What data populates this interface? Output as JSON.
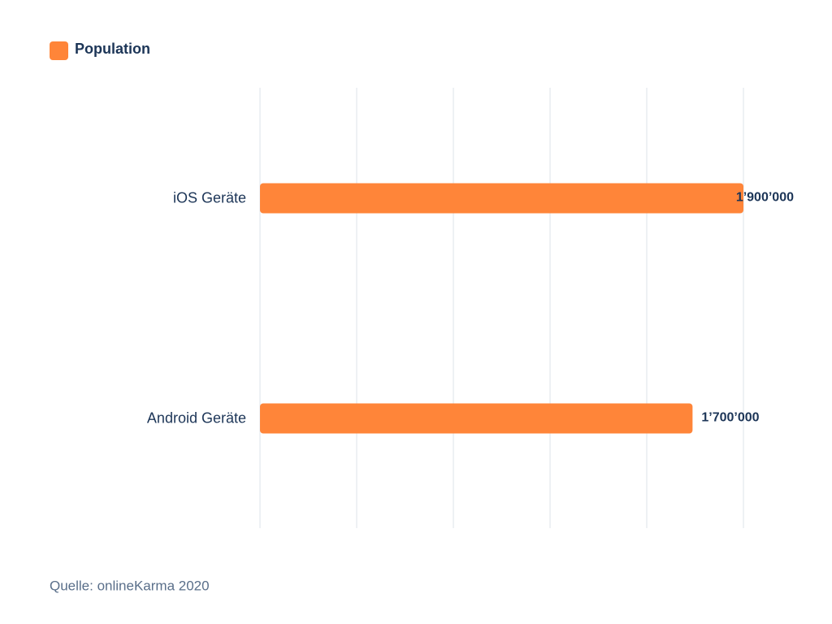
{
  "chart_data": {
    "type": "bar",
    "orientation": "horizontal",
    "categories": [
      "iOS Geräte",
      "Android Geräte"
    ],
    "series": [
      {
        "name": "Population",
        "color": "#ff8539",
        "values": [
          1900000,
          1700000
        ],
        "value_labels": [
          "1’900’000",
          "1’700’000"
        ]
      }
    ],
    "xlim": [
      0,
      1900000
    ],
    "xticks": [
      0,
      380000,
      760000,
      1140000,
      1520000,
      1900000
    ],
    "grid": true,
    "legend": "top-left",
    "source": "Quelle: onlineKarma 2020"
  }
}
